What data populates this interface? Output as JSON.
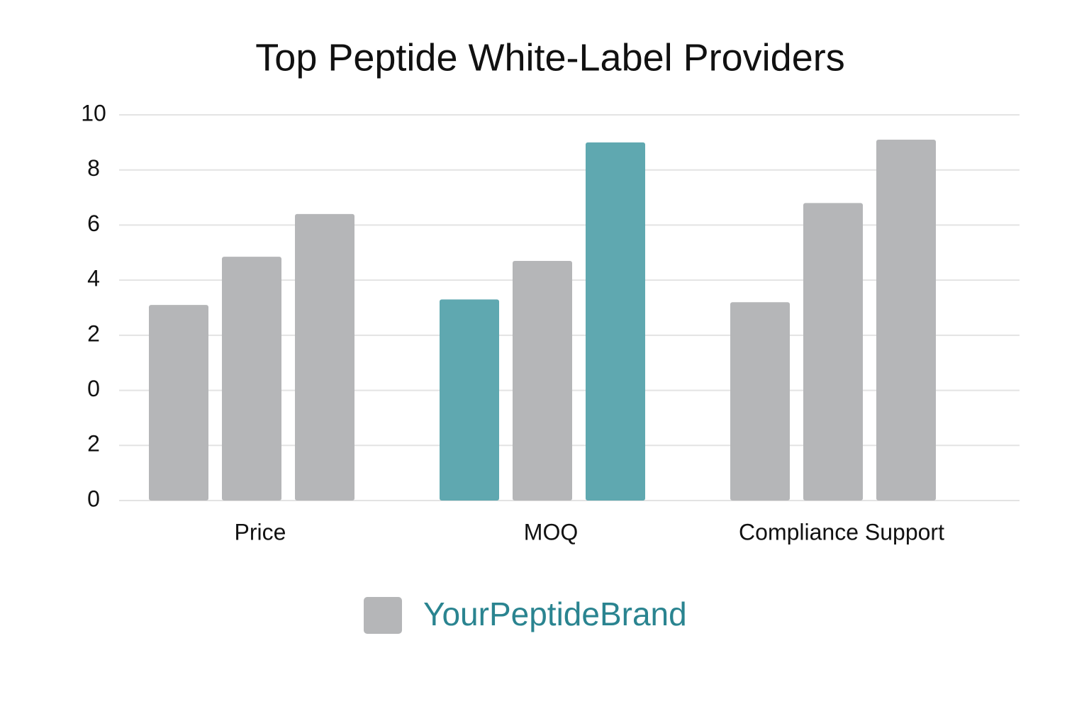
{
  "chart_data": {
    "type": "bar",
    "title": "Top Peptide White-Label Providers",
    "categories": [
      "Price",
      "MOQ",
      "Compliance Support"
    ],
    "series": [
      {
        "colors": [
          "#b5b6b8",
          "#5fa8b0",
          "#b5b6b8"
        ],
        "values": [
          7.1,
          7.3,
          7.2
        ]
      },
      {
        "colors": [
          "#b5b6b8",
          "#b5b6b8",
          "#b5b6b8"
        ],
        "values": [
          8.85,
          8.7,
          10.8
        ]
      },
      {
        "colors": [
          "#b5b6b8",
          "#5fa8b0",
          "#b5b6b8"
        ],
        "values": [
          10.4,
          13.0,
          13.1
        ]
      }
    ],
    "ylim": [
      0,
      14
    ],
    "yticks": [
      0,
      2,
      {
        "value": 4,
        "label": "0"
      },
      {
        "value": 6,
        "label": "2"
      },
      {
        "value": 8,
        "label": "4"
      },
      {
        "value": 10,
        "label": "6"
      },
      {
        "value": 12,
        "label": "8"
      },
      {
        "value": 14,
        "label": "10"
      }
    ],
    "grid": true,
    "legend": {
      "label": "YourPeptideBrand",
      "color": "#b5b6b8",
      "text_color": "#2a8490",
      "position": "bottom"
    }
  }
}
